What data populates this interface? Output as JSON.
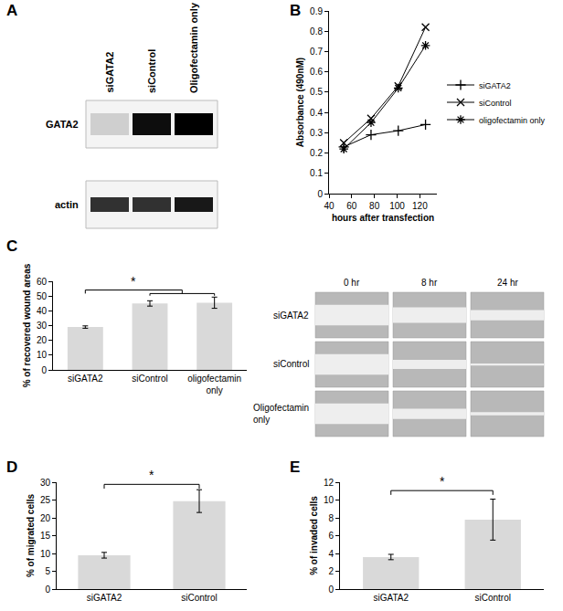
{
  "blot": {
    "panel_label": "A",
    "lanes": [
      "siGATA2",
      "siControl",
      "Oligofectamin only"
    ],
    "rows": [
      {
        "label": "GATA2",
        "intensity": [
          0.15,
          0.95,
          1.0
        ]
      },
      {
        "label": "actin",
        "intensity": [
          0.8,
          0.8,
          0.9
        ]
      }
    ]
  },
  "wound_images": {
    "columns": [
      "0 hr",
      "8 hr",
      "24 hr"
    ],
    "rows": [
      "siGATA2",
      "siControl",
      "Oligofectamin only"
    ],
    "gap": [
      [
        1.0,
        0.75,
        0.5
      ],
      [
        1.0,
        0.45,
        0.1
      ],
      [
        1.0,
        0.5,
        0.15
      ]
    ]
  },
  "chart_data": [
    {
      "type": "line",
      "panel_label": "B",
      "x": [
        53,
        77,
        101,
        125
      ],
      "series": [
        {
          "name": "siGATA2",
          "color": "#000000",
          "marker": "cross",
          "values": [
            0.23,
            0.29,
            0.31,
            0.34
          ]
        },
        {
          "name": "siControl",
          "color": "#000000",
          "marker": "x",
          "values": [
            0.25,
            0.37,
            0.53,
            0.82
          ]
        },
        {
          "name": "oligofectamin only",
          "color": "#000000",
          "marker": "asterisk",
          "values": [
            0.22,
            0.35,
            0.52,
            0.73
          ]
        }
      ],
      "x_label": "hours after transfection",
      "y_label": "Absorbance (490nM)",
      "xlim": [
        40,
        135
      ],
      "xticks": [
        40,
        60,
        80,
        100,
        120
      ],
      "ylim": [
        0,
        0.9
      ],
      "yticks": [
        0,
        0.1,
        0.2,
        0.3,
        0.4,
        0.5,
        0.6,
        0.7,
        0.8,
        0.9
      ],
      "grid": false,
      "legend": "right"
    },
    {
      "type": "bar",
      "panel_label": "C",
      "categories": [
        "siGATA2",
        "siControl",
        "oligofectamin only"
      ],
      "values": [
        29,
        45,
        45.5
      ],
      "errors": [
        0.8,
        1.8,
        3.8
      ],
      "color": "#d9d9d9",
      "y_label": "% of recovered wound areas",
      "ylim": [
        0,
        60
      ],
      "yticks": [
        0,
        10,
        20,
        30,
        40,
        50,
        60
      ],
      "grid": false,
      "significance": [
        {
          "from": "siGATA2",
          "to": [
            "siControl",
            "oligofectamin only"
          ],
          "label": "*"
        }
      ]
    },
    {
      "type": "bar",
      "panel_label": "D",
      "categories": [
        "siGATA2",
        "siControl"
      ],
      "values": [
        9.5,
        24.7
      ],
      "errors": [
        0.8,
        3.2
      ],
      "color": "#d9d9d9",
      "y_label": "% of migrated cells",
      "ylim": [
        0,
        30
      ],
      "yticks": [
        0,
        5,
        10,
        15,
        20,
        25,
        30
      ],
      "grid": false,
      "significance": [
        {
          "from": "siGATA2",
          "to": [
            "siControl"
          ],
          "label": "*"
        }
      ]
    },
    {
      "type": "bar",
      "panel_label": "E",
      "categories": [
        "siGATA2",
        "siControl"
      ],
      "values": [
        3.6,
        7.8
      ],
      "errors": [
        0.3,
        2.3
      ],
      "color": "#d9d9d9",
      "y_label": "% of invaded cells",
      "ylim": [
        0,
        12
      ],
      "yticks": [
        0,
        2,
        4,
        6,
        8,
        10,
        12
      ],
      "grid": false,
      "significance": [
        {
          "from": "siGATA2",
          "to": [
            "siControl"
          ],
          "label": "*"
        }
      ]
    }
  ]
}
